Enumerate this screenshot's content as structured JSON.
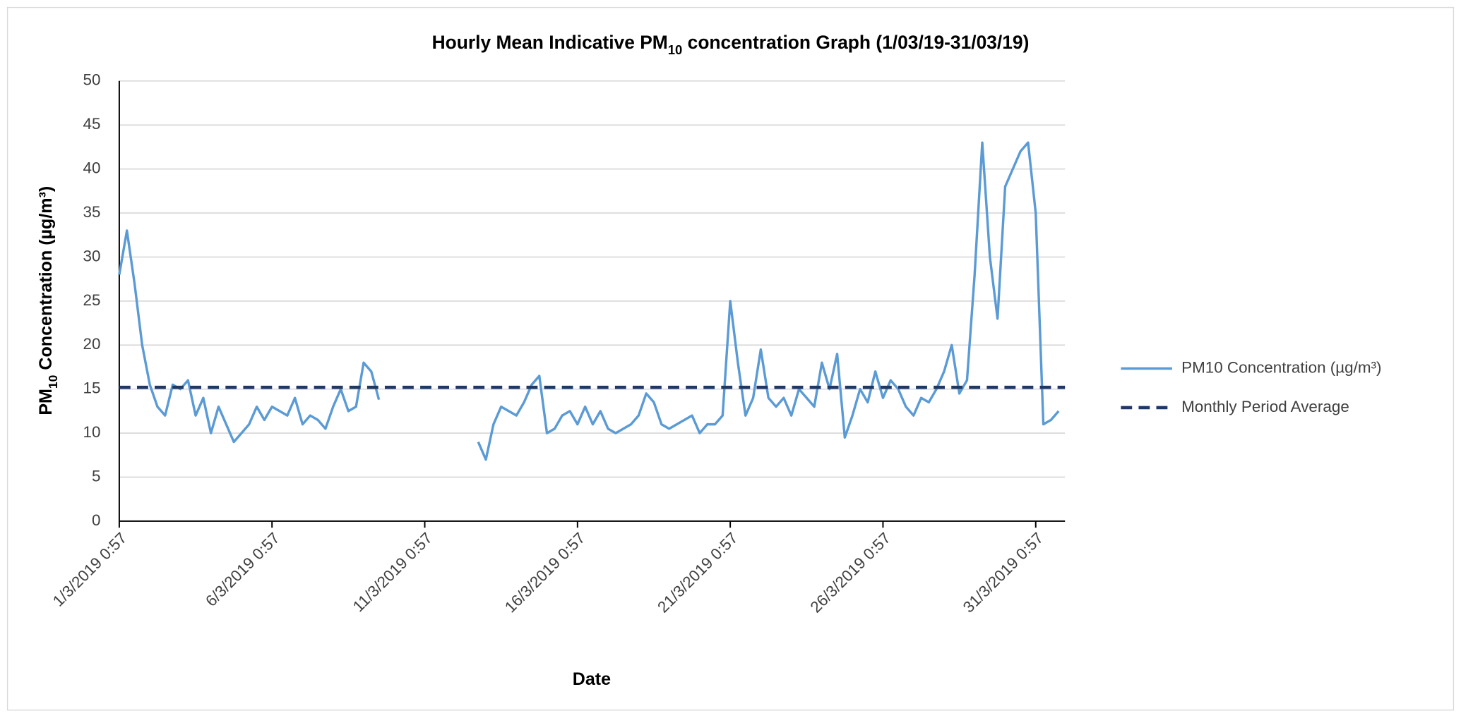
{
  "chart_data": {
    "type": "line",
    "title_parts": [
      "Hourly Mean Indicative PM",
      "10",
      " concentration Graph (1/03/19-31/03/19)"
    ],
    "xlabel": "Date",
    "ylabel_parts": [
      "PM",
      "10",
      " Concentration (µg/m³)"
    ],
    "x": [
      "1/3/2019 0:57",
      "1/3/2019 6:57",
      "1/3/2019 12:57",
      "1/3/2019 18:57",
      "2/3/2019 0:57",
      "2/3/2019 6:57",
      "2/3/2019 12:57",
      "2/3/2019 18:57",
      "3/3/2019 0:57",
      "3/3/2019 6:57",
      "3/3/2019 12:57",
      "3/3/2019 18:57",
      "4/3/2019 0:57",
      "4/3/2019 6:57",
      "4/3/2019 12:57",
      "4/3/2019 18:57",
      "5/3/2019 0:57",
      "5/3/2019 6:57",
      "5/3/2019 12:57",
      "5/3/2019 18:57",
      "6/3/2019 0:57",
      "6/3/2019 6:57",
      "6/3/2019 12:57",
      "6/3/2019 18:57",
      "7/3/2019 0:57",
      "7/3/2019 6:57",
      "7/3/2019 12:57",
      "7/3/2019 18:57",
      "8/3/2019 0:57",
      "8/3/2019 6:57",
      "8/3/2019 12:57",
      "8/3/2019 18:57",
      "9/3/2019 0:57",
      "9/3/2019 6:57",
      "9/3/2019 12:57",
      "9/3/2019 18:57",
      "10/3/2019 0:57",
      "10/3/2019 6:57",
      "10/3/2019 12:57",
      "10/3/2019 18:57",
      "11/3/2019 0:57",
      "11/3/2019 6:57",
      "11/3/2019 12:57",
      "11/3/2019 18:57",
      "12/3/2019 0:57",
      "12/3/2019 6:57",
      "12/3/2019 12:57",
      "12/3/2019 18:57",
      "13/3/2019 0:57",
      "13/3/2019 6:57",
      "13/3/2019 12:57",
      "13/3/2019 18:57",
      "14/3/2019 0:57",
      "14/3/2019 6:57",
      "14/3/2019 12:57",
      "14/3/2019 18:57",
      "15/3/2019 0:57",
      "15/3/2019 6:57",
      "15/3/2019 12:57",
      "15/3/2019 18:57",
      "16/3/2019 0:57",
      "16/3/2019 6:57",
      "16/3/2019 12:57",
      "16/3/2019 18:57",
      "17/3/2019 0:57",
      "17/3/2019 6:57",
      "17/3/2019 12:57",
      "17/3/2019 18:57",
      "18/3/2019 0:57",
      "18/3/2019 6:57",
      "18/3/2019 12:57",
      "18/3/2019 18:57",
      "19/3/2019 0:57",
      "19/3/2019 6:57",
      "19/3/2019 12:57",
      "19/3/2019 18:57",
      "20/3/2019 0:57",
      "20/3/2019 6:57",
      "20/3/2019 12:57",
      "20/3/2019 18:57",
      "21/3/2019 0:57",
      "21/3/2019 6:57",
      "21/3/2019 12:57",
      "21/3/2019 18:57",
      "22/3/2019 0:57",
      "22/3/2019 6:57",
      "22/3/2019 12:57",
      "22/3/2019 18:57",
      "23/3/2019 0:57",
      "23/3/2019 6:57",
      "23/3/2019 12:57",
      "23/3/2019 18:57",
      "24/3/2019 0:57",
      "24/3/2019 6:57",
      "24/3/2019 12:57",
      "24/3/2019 18:57",
      "25/3/2019 0:57",
      "25/3/2019 6:57",
      "25/3/2019 12:57",
      "25/3/2019 18:57",
      "26/3/2019 0:57",
      "26/3/2019 6:57",
      "26/3/2019 12:57",
      "26/3/2019 18:57",
      "27/3/2019 0:57",
      "27/3/2019 6:57",
      "27/3/2019 12:57",
      "27/3/2019 18:57",
      "28/3/2019 0:57",
      "28/3/2019 6:57",
      "28/3/2019 12:57",
      "28/3/2019 18:57",
      "29/3/2019 0:57",
      "29/3/2019 6:57",
      "29/3/2019 12:57",
      "29/3/2019 18:57",
      "30/3/2019 0:57",
      "30/3/2019 6:57",
      "30/3/2019 12:57",
      "30/3/2019 18:57",
      "31/3/2019 0:57",
      "31/3/2019 6:57",
      "31/3/2019 12:57",
      "31/3/2019 18:57"
    ],
    "series": [
      {
        "name": "PM10 Concentration (µg/m³)",
        "color": "#5b9bd5",
        "values": [
          28,
          33,
          27,
          20,
          15.5,
          13,
          12,
          15.5,
          15,
          16,
          12,
          14,
          10,
          13,
          11,
          9,
          10,
          11,
          13,
          11.5,
          13,
          12.5,
          12,
          14,
          11,
          12,
          11.5,
          10.5,
          13,
          15,
          12.5,
          13,
          18,
          17,
          13.8,
          null,
          null,
          null,
          null,
          null,
          null,
          null,
          null,
          null,
          null,
          null,
          null,
          9,
          7,
          11,
          13,
          12.5,
          12,
          13.5,
          15.5,
          16.5,
          10,
          10.5,
          12,
          12.5,
          11,
          13,
          11,
          12.5,
          10.5,
          10,
          10.5,
          11,
          12,
          14.5,
          13.5,
          11,
          10.5,
          11,
          11.5,
          12,
          10,
          11,
          11,
          12,
          25,
          18,
          12,
          14,
          19.5,
          14,
          13,
          14,
          12,
          15,
          14,
          13,
          18,
          15,
          19,
          9.5,
          12,
          15,
          13.5,
          17,
          14,
          16,
          15,
          13,
          12,
          14,
          13.5,
          15,
          17,
          20,
          14.5,
          16,
          28,
          43,
          30,
          23,
          38,
          40,
          42,
          43,
          35,
          11,
          11.5,
          12.5
        ]
      }
    ],
    "reference_lines": [
      {
        "name": "Monthly Period Average",
        "value": 15.2,
        "color": "#1f3864",
        "dashed": true
      }
    ],
    "xlim": [
      "1/3/2019 0:57",
      "31/3/2019 23:57"
    ],
    "xticks": [
      "1/3/2019 0:57",
      "6/3/2019 0:57",
      "11/3/2019 0:57",
      "16/3/2019 0:57",
      "21/3/2019 0:57",
      "26/3/2019 0:57",
      "31/3/2019 0:57"
    ],
    "ylim": [
      0,
      50
    ],
    "yticks": [
      0,
      5,
      10,
      15,
      20,
      25,
      30,
      35,
      40,
      45,
      50
    ],
    "grid": true,
    "legend": "right"
  }
}
